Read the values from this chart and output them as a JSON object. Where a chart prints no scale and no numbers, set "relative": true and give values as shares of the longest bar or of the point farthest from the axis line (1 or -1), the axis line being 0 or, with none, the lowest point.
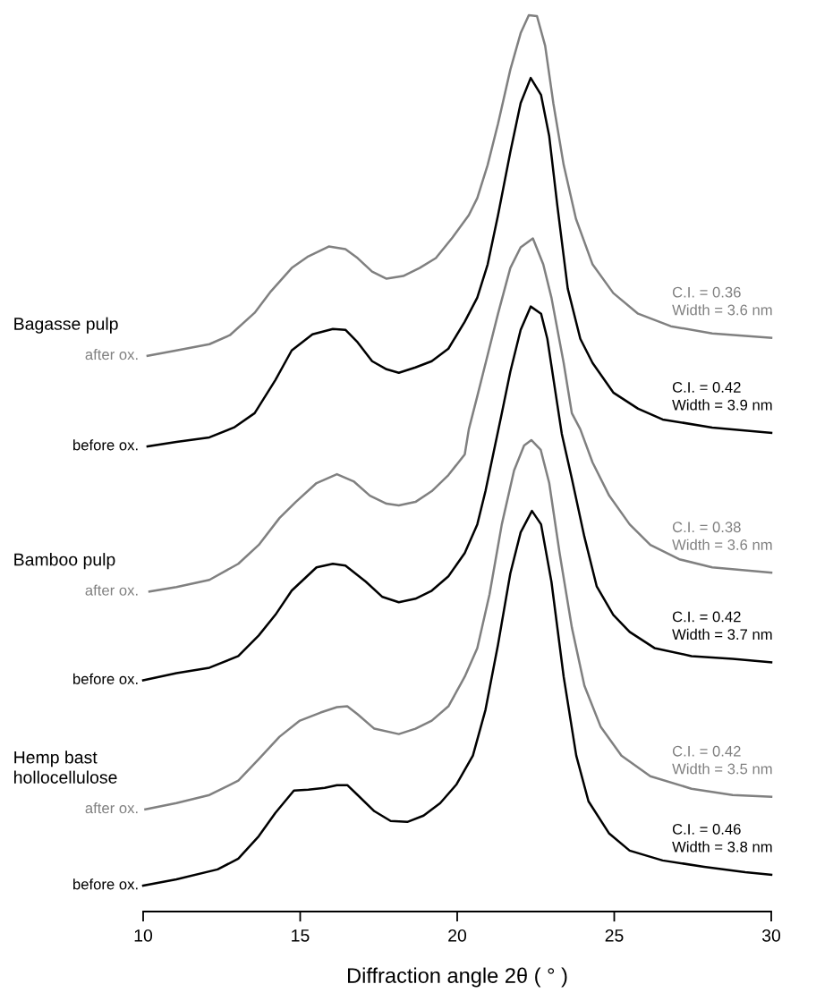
{
  "chart_data": {
    "type": "line",
    "relative": true,
    "xlabel": "Diffraction angle 2θ ( ° )",
    "xlim": [
      10,
      30
    ],
    "xticks": [
      10,
      15,
      20,
      25,
      30
    ],
    "tick_labels": "x",
    "grid": false,
    "legend": false,
    "marker": "none",
    "line_style": "solid",
    "annotations": [
      "Bagasse pulp",
      "Bamboo pulp",
      "Hemp bast\nhollocellulose",
      "C.I. = 0.36\nWidth = 3.6 nm",
      "C.I. = 0.42\nWidth = 3.9 nm",
      "C.I. = 0.38\nWidth = 3.6 nm",
      "C.I. = 0.42\nWidth = 3.7 nm",
      "C.I. = 0.42\nWidth = 3.5 nm",
      "C.I. = 0.46\nWidth = 3.8 nm"
    ],
    "series": [
      {
        "name": "after ox.",
        "color": "#808080",
        "x": [
          10.14,
          11.06,
          12.11,
          12.76,
          13.55,
          14.07,
          14.73,
          15.26,
          15.91,
          16.44,
          16.83,
          17.29,
          17.75,
          18.28,
          18.8,
          19.32,
          19.85,
          20.37,
          20.64,
          20.97,
          21.3,
          21.69,
          22.02,
          22.28,
          22.54,
          22.8,
          23.06,
          23.39,
          23.78,
          24.31,
          24.97,
          25.76,
          26.8,
          28.12,
          30.0
        ],
        "values": [
          0.62,
          0.626,
          0.633,
          0.643,
          0.668,
          0.692,
          0.718,
          0.731,
          0.742,
          0.739,
          0.729,
          0.714,
          0.706,
          0.709,
          0.718,
          0.729,
          0.752,
          0.777,
          0.796,
          0.833,
          0.879,
          0.939,
          0.98,
          1.0,
          0.999,
          0.966,
          0.902,
          0.833,
          0.773,
          0.722,
          0.69,
          0.667,
          0.653,
          0.645,
          0.64
        ]
      },
      {
        "name": "before ox.",
        "color": "#000000",
        "x": [
          10.14,
          11.06,
          12.11,
          12.89,
          13.55,
          14.21,
          14.73,
          15.39,
          16.04,
          16.44,
          16.83,
          17.29,
          17.75,
          18.14,
          18.67,
          19.19,
          19.72,
          20.24,
          20.64,
          20.97,
          21.3,
          21.69,
          22.02,
          22.34,
          22.67,
          22.93,
          23.19,
          23.52,
          23.92,
          24.31,
          24.97,
          25.76,
          26.54,
          28.12,
          30.0
        ],
        "values": [
          0.519,
          0.524,
          0.529,
          0.54,
          0.556,
          0.593,
          0.626,
          0.644,
          0.65,
          0.649,
          0.635,
          0.614,
          0.605,
          0.601,
          0.607,
          0.614,
          0.628,
          0.658,
          0.685,
          0.722,
          0.777,
          0.847,
          0.902,
          0.93,
          0.911,
          0.865,
          0.787,
          0.695,
          0.639,
          0.612,
          0.579,
          0.561,
          0.549,
          0.54,
          0.534
        ]
      },
      {
        "name": "after ox.",
        "color": "#808080",
        "x": [
          10.2,
          11.06,
          12.11,
          13.03,
          13.68,
          14.34,
          14.86,
          15.52,
          16.17,
          16.7,
          17.22,
          17.75,
          18.14,
          18.67,
          19.19,
          19.72,
          20.24,
          20.37,
          20.64,
          20.97,
          21.3,
          21.69,
          22.02,
          22.41,
          22.74,
          23.0,
          23.39,
          23.65,
          23.92,
          24.31,
          24.84,
          25.49,
          26.15,
          27.07,
          28.12,
          30.0
        ],
        "values": [
          0.357,
          0.362,
          0.37,
          0.388,
          0.409,
          0.439,
          0.457,
          0.478,
          0.488,
          0.48,
          0.464,
          0.455,
          0.453,
          0.457,
          0.469,
          0.487,
          0.51,
          0.538,
          0.575,
          0.621,
          0.667,
          0.718,
          0.741,
          0.751,
          0.722,
          0.685,
          0.612,
          0.556,
          0.538,
          0.501,
          0.464,
          0.432,
          0.409,
          0.393,
          0.384,
          0.378
        ]
      },
      {
        "name": "before ox.",
        "color": "#000000",
        "x": [
          10.0,
          11.06,
          12.11,
          13.03,
          13.68,
          14.21,
          14.73,
          15.52,
          16.04,
          16.44,
          17.09,
          17.62,
          18.14,
          18.67,
          19.19,
          19.72,
          20.24,
          20.64,
          20.9,
          21.42,
          21.69,
          22.02,
          22.34,
          22.67,
          22.87,
          23.13,
          23.33,
          23.65,
          24.05,
          24.44,
          24.97,
          25.49,
          26.28,
          27.46,
          28.77,
          30.0
        ],
        "values": [
          0.258,
          0.266,
          0.272,
          0.285,
          0.308,
          0.331,
          0.358,
          0.384,
          0.388,
          0.386,
          0.368,
          0.351,
          0.345,
          0.349,
          0.358,
          0.374,
          0.4,
          0.432,
          0.469,
          0.556,
          0.602,
          0.649,
          0.675,
          0.667,
          0.639,
          0.579,
          0.533,
          0.483,
          0.418,
          0.363,
          0.331,
          0.312,
          0.294,
          0.285,
          0.282,
          0.278
        ]
      },
      {
        "name": "after ox.",
        "color": "#808080",
        "x": [
          10.07,
          11.06,
          12.11,
          13.03,
          13.68,
          14.34,
          14.99,
          15.65,
          16.17,
          16.5,
          16.83,
          17.36,
          18.14,
          18.67,
          19.19,
          19.72,
          20.24,
          20.64,
          21.03,
          21.42,
          21.81,
          22.13,
          22.36,
          22.66,
          22.93,
          23.26,
          23.65,
          24.05,
          24.57,
          25.23,
          26.15,
          27.46,
          28.77,
          30.0
        ],
        "values": [
          0.114,
          0.121,
          0.13,
          0.146,
          0.17,
          0.195,
          0.213,
          0.222,
          0.228,
          0.229,
          0.22,
          0.204,
          0.198,
          0.204,
          0.213,
          0.229,
          0.262,
          0.294,
          0.354,
          0.432,
          0.492,
          0.52,
          0.526,
          0.515,
          0.478,
          0.4,
          0.317,
          0.252,
          0.206,
          0.174,
          0.151,
          0.137,
          0.13,
          0.128
        ]
      },
      {
        "name": "before ox.",
        "color": "#000000",
        "x": [
          10.0,
          11.06,
          12.37,
          13.03,
          13.68,
          14.21,
          14.8,
          15.26,
          15.78,
          16.17,
          16.5,
          16.83,
          17.36,
          17.88,
          18.41,
          18.93,
          19.46,
          19.98,
          20.5,
          20.9,
          21.3,
          21.69,
          22.02,
          22.38,
          22.67,
          23.0,
          23.39,
          23.79,
          24.18,
          24.84,
          25.49,
          26.54,
          27.86,
          29.17,
          30.0
        ],
        "values": [
          0.029,
          0.036,
          0.047,
          0.059,
          0.084,
          0.11,
          0.135,
          0.136,
          0.138,
          0.141,
          0.141,
          0.13,
          0.112,
          0.101,
          0.1,
          0.107,
          0.121,
          0.142,
          0.174,
          0.225,
          0.298,
          0.377,
          0.423,
          0.447,
          0.432,
          0.368,
          0.262,
          0.174,
          0.123,
          0.087,
          0.068,
          0.057,
          0.05,
          0.044,
          0.041
        ]
      }
    ]
  }
}
